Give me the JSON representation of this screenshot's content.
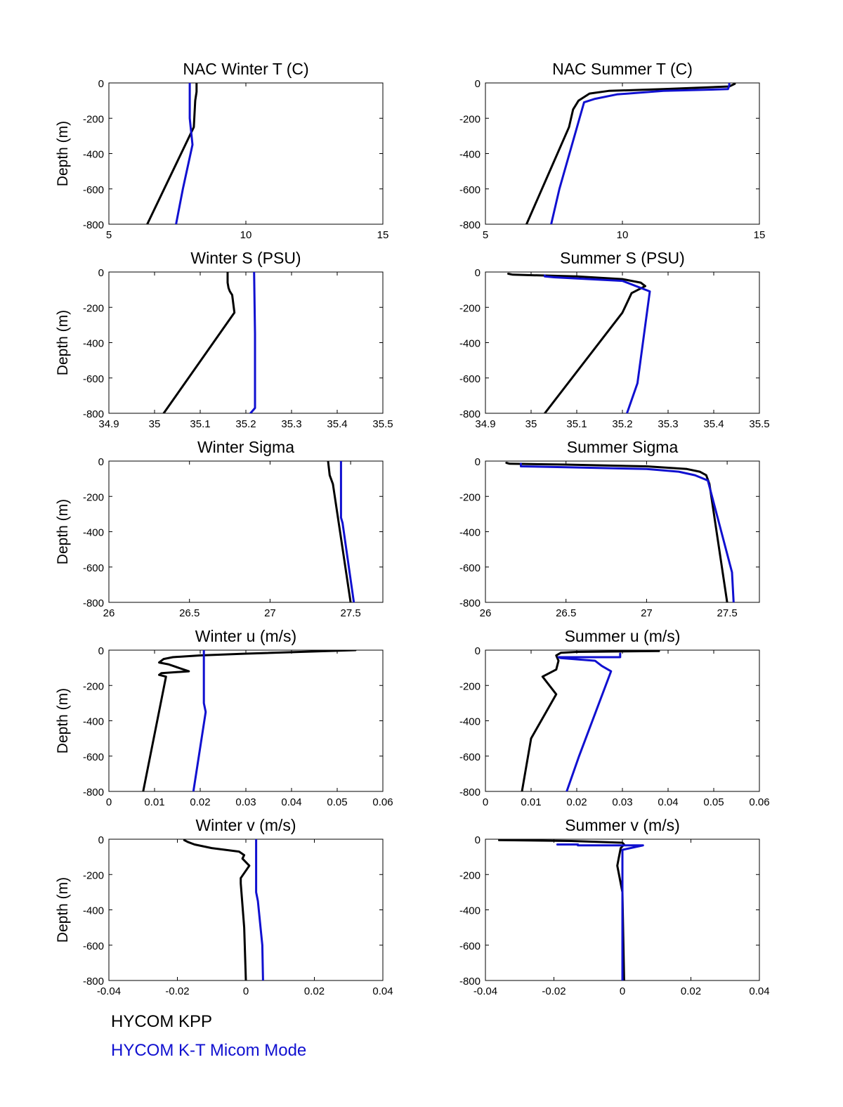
{
  "legend": {
    "kpp_label": "HYCOM KPP",
    "kt_label": "HYCOM K-T Micom Mode",
    "kpp_color": "#000000",
    "kt_color": "#1010d0"
  },
  "chart_data": [
    {
      "type": "line",
      "title": "NAC Winter T (C)",
      "ylabel": "Depth (m)",
      "xlim": [
        5,
        15
      ],
      "ylim": [
        -800,
        0
      ],
      "xticks": [
        "5",
        "10",
        "15"
      ],
      "yticks": [
        "0",
        "-200",
        "-400",
        "-600",
        "-800"
      ],
      "series": [
        {
          "name": "HYCOM KPP",
          "color": "#000000",
          "x": [
            8.2,
            8.2,
            8.15,
            8.1,
            6.4
          ],
          "y": [
            0,
            -50,
            -100,
            -250,
            -800
          ]
        },
        {
          "name": "HYCOM K-T Micom Mode",
          "color": "#1010d0",
          "x": [
            7.95,
            7.95,
            8.05,
            7.7,
            7.45
          ],
          "y": [
            0,
            -200,
            -350,
            -600,
            -800
          ]
        }
      ]
    },
    {
      "type": "line",
      "title": "NAC Summer T (C)",
      "ylabel": "Depth (m)",
      "xlim": [
        5,
        15
      ],
      "ylim": [
        -800,
        0
      ],
      "xticks": [
        "5",
        "10",
        "15"
      ],
      "yticks": [
        "0",
        "-200",
        "-400",
        "-600",
        "-800"
      ],
      "series": [
        {
          "name": "HYCOM KPP",
          "color": "#000000",
          "x": [
            14.1,
            13.9,
            11.5,
            9.5,
            8.8,
            8.4,
            8.2,
            8.05,
            6.5
          ],
          "y": [
            -5,
            -20,
            -35,
            -45,
            -60,
            -100,
            -150,
            -250,
            -800
          ]
        },
        {
          "name": "HYCOM K-T Micom Mode",
          "color": "#1010d0",
          "x": [
            13.9,
            13.9,
            13.85,
            11.5,
            9.8,
            9.0,
            8.6,
            7.7,
            7.4
          ],
          "y": [
            0,
            -15,
            -35,
            -45,
            -65,
            -90,
            -110,
            -600,
            -800
          ]
        }
      ]
    },
    {
      "type": "line",
      "title": "Winter S (PSU)",
      "ylabel": "Depth (m)",
      "xlim": [
        34.9,
        35.5
      ],
      "ylim": [
        -800,
        0
      ],
      "xticks": [
        "34.9",
        "35",
        "35.1",
        "35.2",
        "35.3",
        "35.4",
        "35.5"
      ],
      "yticks": [
        "0",
        "-200",
        "-400",
        "-600",
        "-800"
      ],
      "series": [
        {
          "name": "HYCOM KPP",
          "color": "#000000",
          "x": [
            35.16,
            35.16,
            35.162,
            35.165,
            35.17,
            35.175,
            35.02
          ],
          "y": [
            0,
            -60,
            -90,
            -110,
            -130,
            -230,
            -800
          ]
        },
        {
          "name": "HYCOM K-T Micom Mode",
          "color": "#1010d0",
          "x": [
            35.218,
            35.22,
            35.22,
            35.21
          ],
          "y": [
            0,
            -350,
            -770,
            -800
          ]
        }
      ]
    },
    {
      "type": "line",
      "title": "Summer S (PSU)",
      "ylabel": "Depth (m)",
      "xlim": [
        34.9,
        35.5
      ],
      "ylim": [
        -800,
        0
      ],
      "xticks": [
        "34.9",
        "35",
        "35.1",
        "35.2",
        "35.3",
        "35.4",
        "35.5"
      ],
      "yticks": [
        "0",
        "-200",
        "-400",
        "-600",
        "-800"
      ],
      "series": [
        {
          "name": "HYCOM KPP",
          "color": "#000000",
          "x": [
            34.95,
            34.96,
            35.1,
            35.2,
            35.24,
            35.25,
            35.22,
            35.2,
            35.03
          ],
          "y": [
            -10,
            -15,
            -25,
            -40,
            -60,
            -80,
            -120,
            -230,
            -800
          ]
        },
        {
          "name": "HYCOM K-T Micom Mode",
          "color": "#1010d0",
          "x": [
            35.03,
            35.03,
            35.05,
            35.2,
            35.26,
            35.233,
            35.21
          ],
          "y": [
            -20,
            -25,
            -30,
            -50,
            -110,
            -630,
            -800
          ]
        }
      ]
    },
    {
      "type": "line",
      "title": "Winter Sigma",
      "ylabel": "Depth (m)",
      "xlim": [
        26,
        27.7
      ],
      "ylim": [
        -800,
        0
      ],
      "xticks": [
        "26",
        "26.5",
        "27",
        "27.5"
      ],
      "yticks": [
        "0",
        "-200",
        "-400",
        "-600",
        "-800"
      ],
      "series": [
        {
          "name": "HYCOM KPP",
          "color": "#000000",
          "x": [
            27.36,
            27.37,
            27.39,
            27.5
          ],
          "y": [
            0,
            -80,
            -130,
            -800
          ]
        },
        {
          "name": "HYCOM K-T Micom Mode",
          "color": "#1010d0",
          "x": [
            27.44,
            27.44,
            27.45,
            27.52
          ],
          "y": [
            0,
            -320,
            -350,
            -800
          ]
        }
      ]
    },
    {
      "type": "line",
      "title": "Summer Sigma",
      "ylabel": "Depth (m)",
      "xlim": [
        26,
        27.7
      ],
      "ylim": [
        -800,
        0
      ],
      "xticks": [
        "26",
        "26.5",
        "27",
        "27.5"
      ],
      "yticks": [
        "0",
        "-200",
        "-400",
        "-600",
        "-800"
      ],
      "series": [
        {
          "name": "HYCOM KPP",
          "color": "#000000",
          "x": [
            26.13,
            26.15,
            26.5,
            27.0,
            27.25,
            27.33,
            27.37,
            27.39,
            27.5
          ],
          "y": [
            -10,
            -15,
            -20,
            -30,
            -45,
            -60,
            -80,
            -130,
            -800
          ]
        },
        {
          "name": "HYCOM K-T Micom Mode",
          "color": "#1010d0",
          "x": [
            26.22,
            26.22,
            26.5,
            27.0,
            27.2,
            27.3,
            27.38,
            27.53,
            27.54
          ],
          "y": [
            -15,
            -30,
            -35,
            -45,
            -60,
            -80,
            -110,
            -630,
            -800
          ]
        }
      ]
    },
    {
      "type": "line",
      "title": "Winter u (m/s)",
      "ylabel": "Depth (m)",
      "xlim": [
        0,
        0.06
      ],
      "ylim": [
        -800,
        0
      ],
      "xticks": [
        "0",
        "0.01",
        "0.02",
        "0.03",
        "0.04",
        "0.05",
        "0.06"
      ],
      "yticks": [
        "0",
        "-200",
        "-400",
        "-600",
        "-800"
      ],
      "series": [
        {
          "name": "HYCOM KPP",
          "color": "#000000",
          "x": [
            0.054,
            0.03,
            0.02,
            0.014,
            0.012,
            0.011,
            0.013,
            0.0175,
            0.0115,
            0.011,
            0.0125,
            0.0075
          ],
          "y": [
            0,
            -20,
            -30,
            -40,
            -50,
            -70,
            -80,
            -120,
            -130,
            -140,
            -150,
            -800
          ]
        },
        {
          "name": "HYCOM K-T Micom Mode",
          "color": "#1010d0",
          "x": [
            0.0208,
            0.0208,
            0.0212,
            0.0185
          ],
          "y": [
            0,
            -300,
            -350,
            -800
          ]
        }
      ]
    },
    {
      "type": "line",
      "title": "Summer u (m/s)",
      "ylabel": "Depth (m)",
      "xlim": [
        0,
        0.06
      ],
      "ylim": [
        -800,
        0
      ],
      "xticks": [
        "0",
        "0.01",
        "0.02",
        "0.03",
        "0.04",
        "0.05",
        "0.06"
      ],
      "yticks": [
        "0",
        "-200",
        "-400",
        "-600",
        "-800"
      ],
      "series": [
        {
          "name": "HYCOM KPP",
          "color": "#000000",
          "x": [
            0.038,
            0.02,
            0.0165,
            0.0155,
            0.016,
            0.0155,
            0.014,
            0.0125,
            0.0155,
            0.01,
            0.008
          ],
          "y": [
            -5,
            -10,
            -15,
            -30,
            -60,
            -110,
            -130,
            -150,
            -250,
            -500,
            -800
          ]
        },
        {
          "name": "HYCOM K-T Micom Mode",
          "color": "#1010d0",
          "x": [
            0.0295,
            0.0295,
            0.016,
            0.0165,
            0.024,
            0.0255,
            0.0275,
            0.0205,
            0.0178
          ],
          "y": [
            -20,
            -40,
            -40,
            -45,
            -60,
            -90,
            -120,
            -600,
            -800
          ]
        }
      ]
    },
    {
      "type": "line",
      "title": "Winter v (m/s)",
      "ylabel": "Depth (m)",
      "xlim": [
        -0.04,
        0.04
      ],
      "ylim": [
        -800,
        0
      ],
      "xticks": [
        "-0.04",
        "-0.02",
        "0",
        "0.02",
        "0.04"
      ],
      "yticks": [
        "0",
        "-200",
        "-400",
        "-600",
        "-800"
      ],
      "series": [
        {
          "name": "HYCOM KPP",
          "color": "#000000",
          "x": [
            -0.018,
            -0.017,
            -0.015,
            -0.01,
            -0.002,
            -0.0005,
            -0.001,
            0.001,
            -0.0015,
            -0.0015,
            -0.0005,
            0.0
          ],
          "y": [
            -5,
            -15,
            -30,
            -50,
            -70,
            -90,
            -110,
            -150,
            -220,
            -250,
            -500,
            -800
          ]
        },
        {
          "name": "HYCOM K-T Micom Mode",
          "color": "#1010d0",
          "x": [
            0.003,
            0.003,
            0.0035,
            0.0048,
            0.005
          ],
          "y": [
            0,
            -300,
            -350,
            -600,
            -800
          ]
        }
      ]
    },
    {
      "type": "line",
      "title": "Summer v (m/s)",
      "ylabel": "Depth (m)",
      "xlim": [
        -0.04,
        0.04
      ],
      "ylim": [
        -800,
        0
      ],
      "xticks": [
        "-0.04",
        "-0.02",
        "0",
        "0.02",
        "0.04"
      ],
      "yticks": [
        "0",
        "-200",
        "-400",
        "-600",
        "-800"
      ],
      "series": [
        {
          "name": "HYCOM KPP",
          "color": "#000000",
          "x": [
            -0.036,
            -0.015,
            0.0,
            0.0005,
            -0.0005,
            -0.001,
            -0.0015,
            0.0,
            0.0005
          ],
          "y": [
            -5,
            -10,
            -20,
            -30,
            -50,
            -100,
            -150,
            -300,
            -800
          ]
        },
        {
          "name": "HYCOM K-T Micom Mode",
          "color": "#1010d0",
          "x": [
            -0.019,
            -0.013,
            -0.013,
            0.006,
            0.0,
            0.0,
            0.0
          ],
          "y": [
            -30,
            -30,
            -35,
            -35,
            -60,
            -300,
            -800
          ]
        }
      ]
    }
  ]
}
